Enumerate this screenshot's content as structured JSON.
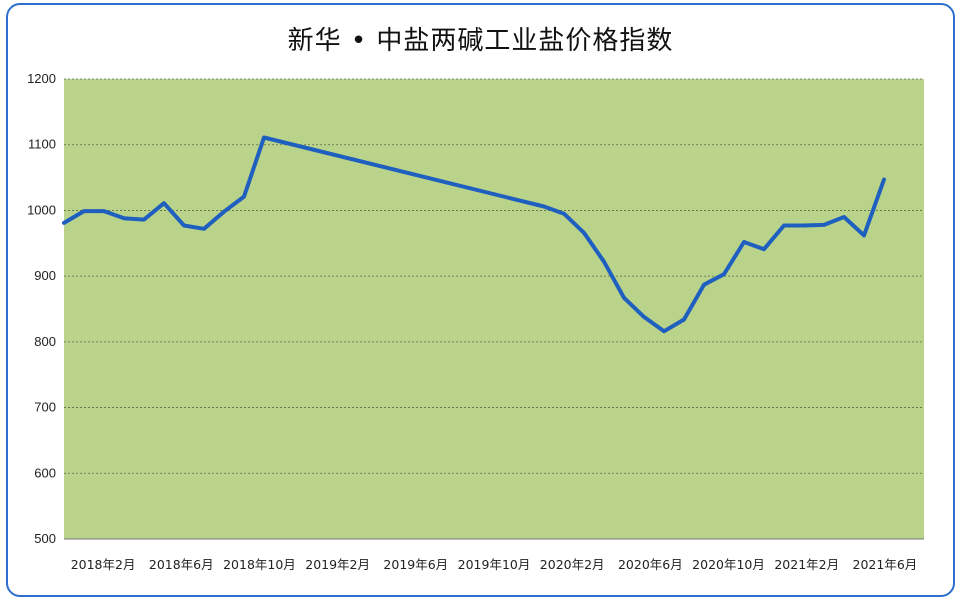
{
  "colors": {
    "frame": "#2e6fcf",
    "plot_background": "#b9d38a",
    "line": "#1f5fbf",
    "grid": "#5a6a48"
  },
  "chart_data": {
    "type": "line",
    "title": "新华 • 中盐两碱工业盐价格指数",
    "xlabel": "",
    "ylabel": "",
    "ylim": [
      500,
      1200
    ],
    "yticks": [
      500,
      600,
      700,
      800,
      900,
      1000,
      1100,
      1200
    ],
    "grid": true,
    "x_ticks": [
      "2018年2月",
      "2018年6月",
      "2018年10月",
      "2019年2月",
      "2019年6月",
      "2019年10月",
      "2020年2月",
      "2020年6月",
      "2020年10月",
      "2021年2月",
      "2021年6月"
    ],
    "x_range": [
      "2018-01",
      "2021-08"
    ],
    "series": [
      {
        "x": [
          "2018-01",
          "2018-02",
          "2018-03",
          "2018-04",
          "2018-05",
          "2018-06",
          "2018-07",
          "2018-08",
          "2018-09",
          "2018-10",
          "2018-11",
          "2020-01",
          "2020-02",
          "2020-03",
          "2020-04",
          "2020-05",
          "2020-06",
          "2020-07",
          "2020-08",
          "2020-09",
          "2020-10",
          "2020-11",
          "2020-12",
          "2021-01",
          "2021-02",
          "2021-03",
          "2021-04",
          "2021-05",
          "2021-06",
          "2021-07"
        ],
        "values": [
          981,
          999,
          999,
          988,
          986,
          1011,
          977,
          972,
          998,
          1021,
          1111,
          1006,
          995,
          966,
          922,
          867,
          838,
          816,
          834,
          887,
          903,
          952,
          941,
          977,
          977,
          978,
          990,
          962,
          1047,
          null
        ]
      }
    ]
  }
}
